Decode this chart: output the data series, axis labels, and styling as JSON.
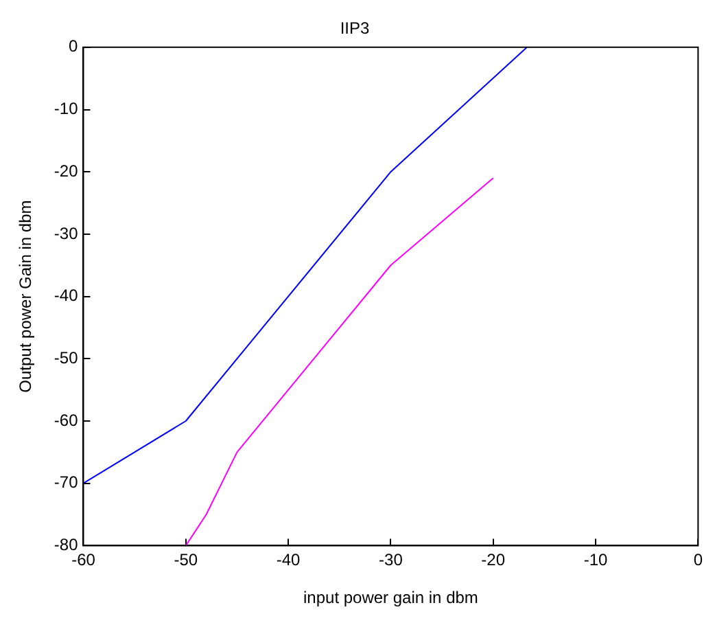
{
  "chart_data": {
    "type": "line",
    "title": "IIP3",
    "xlabel": "input power gain in dbm",
    "ylabel": "Output power Gain in dbm",
    "series": [
      {
        "color": "#0000ff",
        "x": [
          -60,
          -50,
          -30,
          -16.7
        ],
        "values": [
          -70,
          -60,
          -20,
          0
        ]
      },
      {
        "color": "#ff00ff",
        "x": [
          -50,
          -48,
          -45,
          -30,
          -20
        ],
        "values": [
          -80,
          -75,
          -65,
          -35,
          -21
        ]
      }
    ],
    "xlim": [
      -60,
      0
    ],
    "xticks": [
      -60,
      -50,
      -40,
      -30,
      -20,
      -10,
      0
    ],
    "ylim": [
      -80,
      0
    ],
    "yticks": [
      -80,
      -70,
      -60,
      -50,
      -40,
      -30,
      -20,
      -10,
      0
    ],
    "grid": false,
    "legend": false,
    "marker": "none",
    "line_style": "solid"
  }
}
